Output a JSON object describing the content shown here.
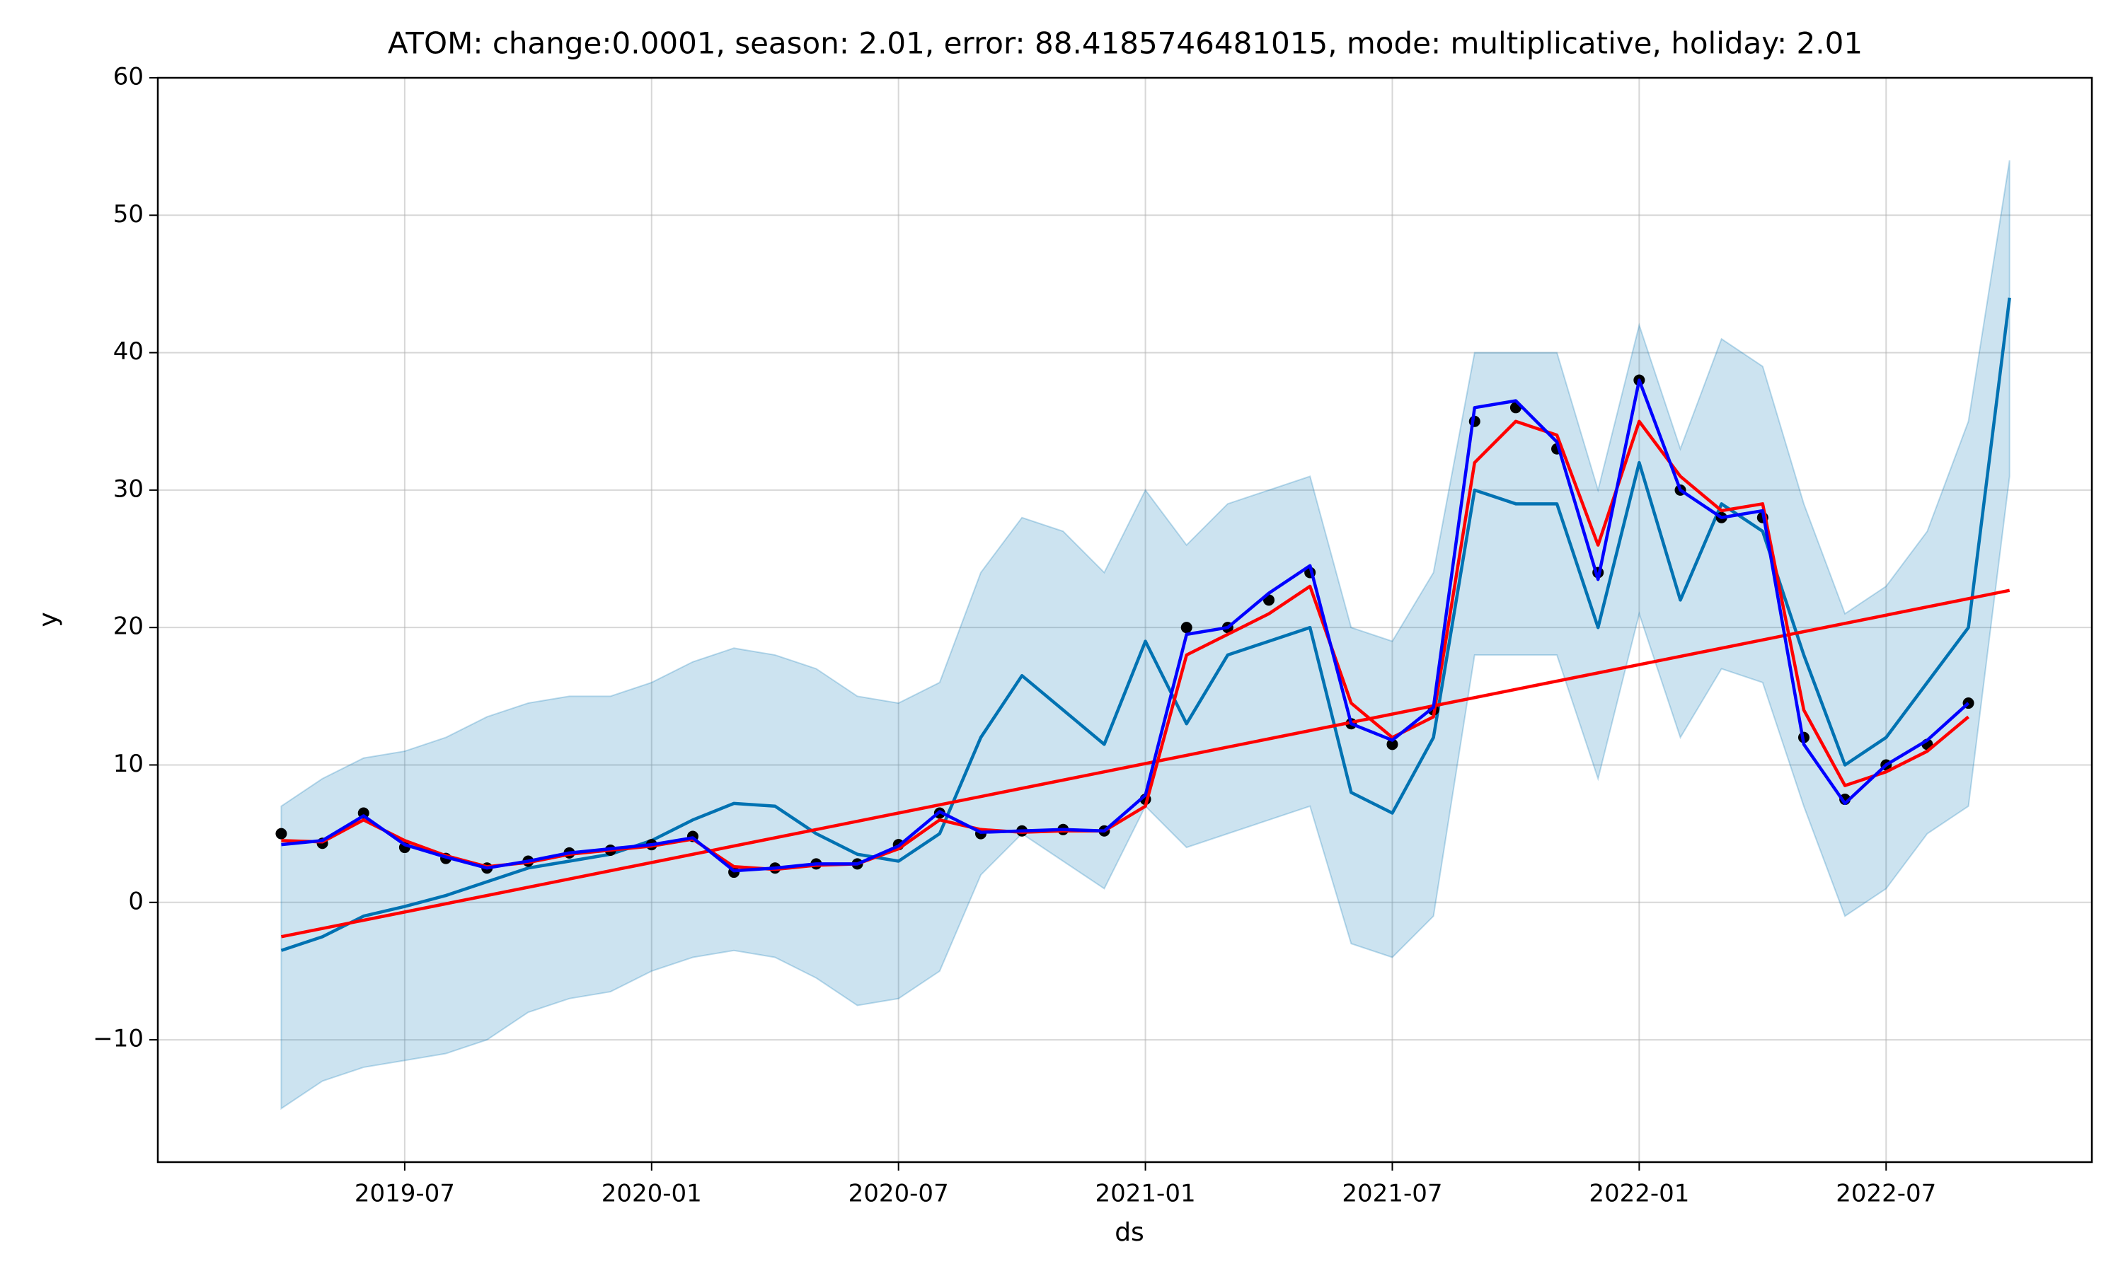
{
  "chart_data": {
    "type": "line",
    "title": "ATOM: change:0.0001, season: 2.01, error: 88.4185746481015, mode: multiplicative, holiday: 2.01",
    "x_label": "ds",
    "y_label": "y",
    "x": [
      "2019-04",
      "2019-05",
      "2019-06",
      "2019-07",
      "2019-08",
      "2019-09",
      "2019-10",
      "2019-11",
      "2019-12",
      "2020-01",
      "2020-02",
      "2020-03",
      "2020-04",
      "2020-05",
      "2020-06",
      "2020-07",
      "2020-08",
      "2020-09",
      "2020-10",
      "2020-11",
      "2020-12",
      "2021-01",
      "2021-02",
      "2021-03",
      "2021-04",
      "2021-05",
      "2021-06",
      "2021-07",
      "2021-08",
      "2021-09",
      "2021-10",
      "2021-11",
      "2021-12",
      "2022-01",
      "2022-02",
      "2022-03",
      "2022-04",
      "2022-05",
      "2022-06",
      "2022-07",
      "2022-08",
      "2022-09",
      "2022-10"
    ],
    "xlim": [
      "2019-01",
      "2022-12"
    ],
    "xticks": [
      "2019-07",
      "2020-01",
      "2020-07",
      "2021-01",
      "2021-07",
      "2022-01",
      "2022-07"
    ],
    "ylim": [
      -18.9,
      60
    ],
    "yticks": [
      {
        "value": -10,
        "label": "−10"
      },
      0,
      10,
      20,
      30,
      40,
      50,
      60
    ],
    "grid": true,
    "series": [
      {
        "type": "band",
        "color": "#0072B2",
        "lower": [
          -15,
          -13,
          -12,
          -11.5,
          -11,
          -10,
          -8,
          -7,
          -6.5,
          -5,
          -4,
          -3.5,
          -4,
          -5.5,
          -7.5,
          -7,
          -5,
          2,
          5,
          3,
          1,
          7,
          4,
          5,
          6,
          7,
          -3,
          -4,
          -1,
          18,
          18,
          18,
          9,
          21,
          12,
          17,
          16,
          7,
          -1,
          1,
          5,
          7,
          31
        ],
        "upper": [
          7,
          9,
          10.5,
          11,
          12,
          13.5,
          14.5,
          15,
          15,
          16,
          17.5,
          18.5,
          18,
          17,
          15,
          14.5,
          16,
          24,
          28,
          27,
          24,
          30,
          26,
          29,
          30,
          31,
          20,
          19,
          24,
          40,
          40,
          40,
          30,
          42,
          33,
          41,
          39,
          29,
          21,
          23,
          27,
          35,
          54
        ]
      },
      {
        "type": "line",
        "color": "#0072B2",
        "values": [
          -3.5,
          -2.5,
          -1,
          -0.3,
          0.5,
          1.5,
          2.5,
          3,
          3.5,
          4.5,
          6,
          7.2,
          7,
          5,
          3.5,
          3,
          5,
          12,
          16.5,
          14,
          11.5,
          19,
          13,
          18,
          19,
          20,
          8,
          6.5,
          12,
          30,
          29,
          29,
          20,
          32,
          22,
          29,
          27,
          18,
          10,
          12,
          16,
          20,
          44
        ]
      },
      {
        "type": "scatter",
        "color": "#000000",
        "values": [
          5,
          4.3,
          6.5,
          4,
          3.2,
          2.5,
          3,
          3.6,
          3.8,
          4.2,
          4.8,
          2.2,
          2.5,
          2.8,
          2.8,
          4.2,
          6.5,
          5,
          5.2,
          5.3,
          5.2,
          7.5,
          20,
          20,
          22,
          24,
          13,
          11.5,
          14,
          35,
          36,
          33,
          24,
          38,
          30,
          28,
          28,
          12,
          7.5,
          10,
          11.5,
          14.5,
          null
        ]
      },
      {
        "type": "line",
        "color": "#ff0000",
        "x": [
          "2019-04",
          "2022-10"
        ],
        "values": [
          -2.5,
          22.7
        ]
      },
      {
        "type": "line",
        "color": "#ff0000",
        "values": [
          4.5,
          4.4,
          6,
          4.5,
          3.4,
          2.6,
          2.9,
          3.5,
          3.8,
          4.1,
          4.6,
          2.6,
          2.4,
          2.7,
          2.8,
          3.9,
          6,
          5.3,
          5.1,
          5.2,
          5.2,
          7,
          18,
          19.5,
          21,
          23,
          14.5,
          12,
          13.5,
          32,
          35,
          34,
          26,
          35,
          31,
          28.5,
          29,
          14,
          8.5,
          9.5,
          11,
          13.5,
          null
        ]
      },
      {
        "type": "line",
        "color": "#0000ff",
        "values": [
          4.2,
          4.5,
          6.3,
          4.2,
          3.3,
          2.5,
          3,
          3.6,
          3.9,
          4.2,
          4.7,
          2.3,
          2.5,
          2.8,
          2.8,
          4.1,
          6.6,
          5.1,
          5.2,
          5.3,
          5.2,
          7.8,
          19.5,
          20,
          22.5,
          24.5,
          13,
          11.8,
          14.2,
          36,
          36.5,
          33.5,
          23.5,
          38,
          30,
          28,
          28.5,
          11.5,
          7.2,
          10,
          11.8,
          14.5,
          null
        ]
      }
    ]
  }
}
